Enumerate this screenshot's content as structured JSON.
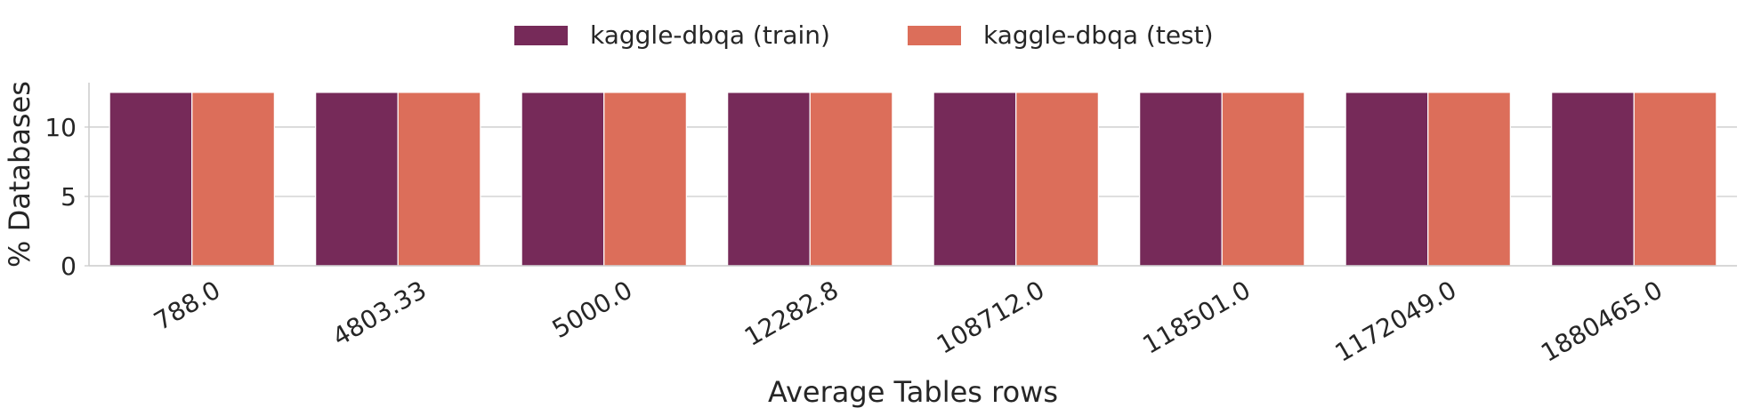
{
  "chart_data": {
    "type": "bar",
    "title": "",
    "xlabel": "Average Tables rows",
    "ylabel": "% Databases",
    "categories": [
      "788.0",
      "4803.33",
      "5000.0",
      "12282.8",
      "108712.0",
      "118501.0",
      "1172049.0",
      "1880465.0"
    ],
    "series": [
      {
        "name": "kaggle-dbqa (train)",
        "color": "#762a59",
        "values": [
          12.5,
          12.5,
          12.5,
          12.5,
          12.5,
          12.5,
          12.5,
          12.5
        ]
      },
      {
        "name": "kaggle-dbqa (test)",
        "color": "#dc6e5a",
        "values": [
          12.5,
          12.5,
          12.5,
          12.5,
          12.5,
          12.5,
          12.5,
          12.5
        ]
      }
    ],
    "ylim": [
      0,
      13.2
    ],
    "yticks": [
      0,
      5,
      10
    ],
    "grid": "horizontal",
    "legend_position": "top-center",
    "x_tick_rotation": 30
  }
}
